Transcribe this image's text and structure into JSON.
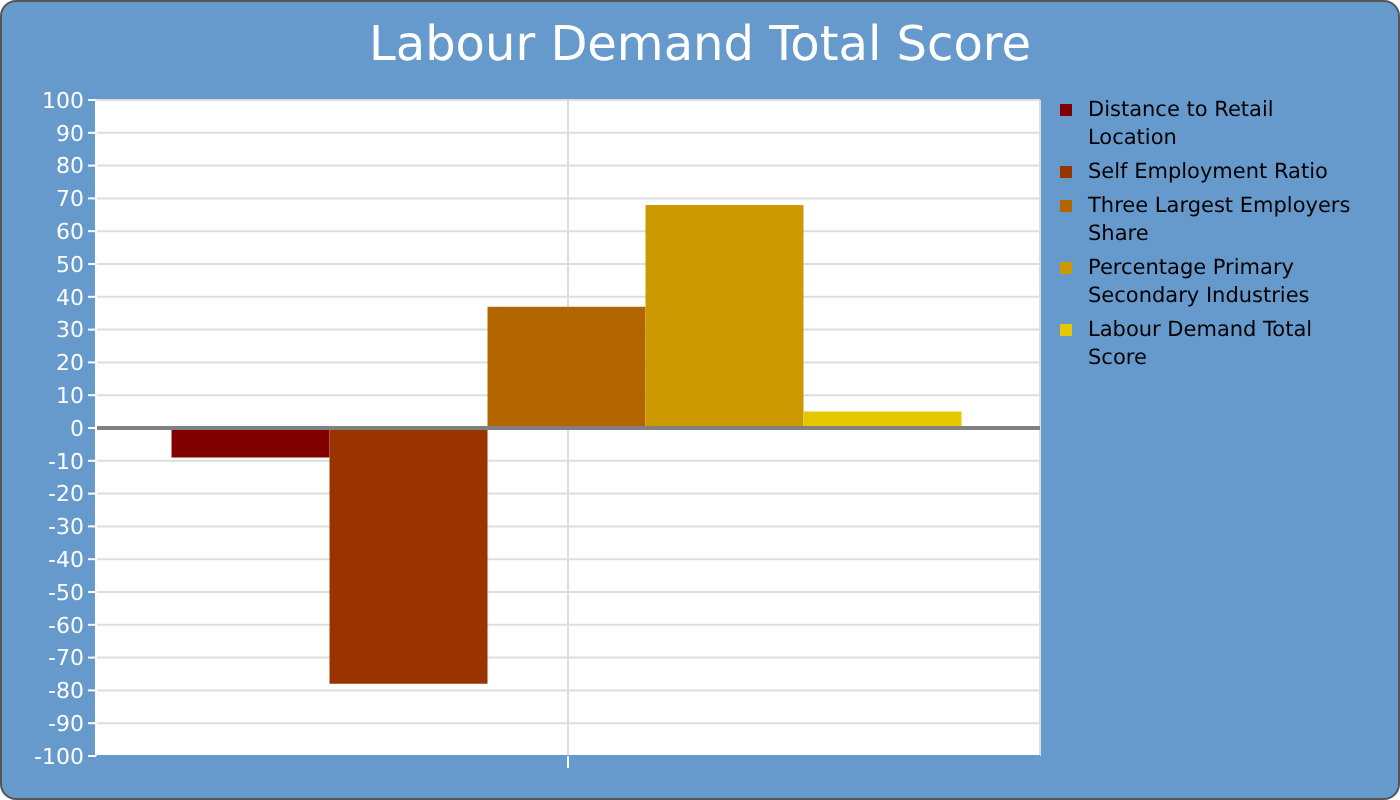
{
  "chart_data": {
    "type": "bar",
    "title": "Labour Demand Total Score",
    "categories": [
      null
    ],
    "series": [
      {
        "name": "Distance to Retail Location",
        "color": "#800000",
        "values": [
          -9
        ]
      },
      {
        "name": "Self Employment Ratio",
        "color": "#993300",
        "values": [
          -78
        ]
      },
      {
        "name": "Three Largest Employers Share",
        "color": "#b36600",
        "values": [
          37
        ]
      },
      {
        "name": "Percentage Primary Secondary Industries",
        "color": "#cc9900",
        "values": [
          68
        ]
      },
      {
        "name": "Labour Demand Total Score",
        "color": "#e6c800",
        "values": [
          5
        ]
      }
    ],
    "ylim": [
      -100,
      100
    ],
    "yticks": [
      -100,
      -90,
      -80,
      -70,
      -60,
      -50,
      -40,
      -30,
      -20,
      -10,
      0,
      10,
      20,
      30,
      40,
      50,
      60,
      70,
      80,
      90,
      100
    ],
    "grid": true,
    "legend": "right",
    "ref_lines": [
      {
        "axis": "y",
        "value": 0,
        "color": "#808080"
      }
    ]
  }
}
